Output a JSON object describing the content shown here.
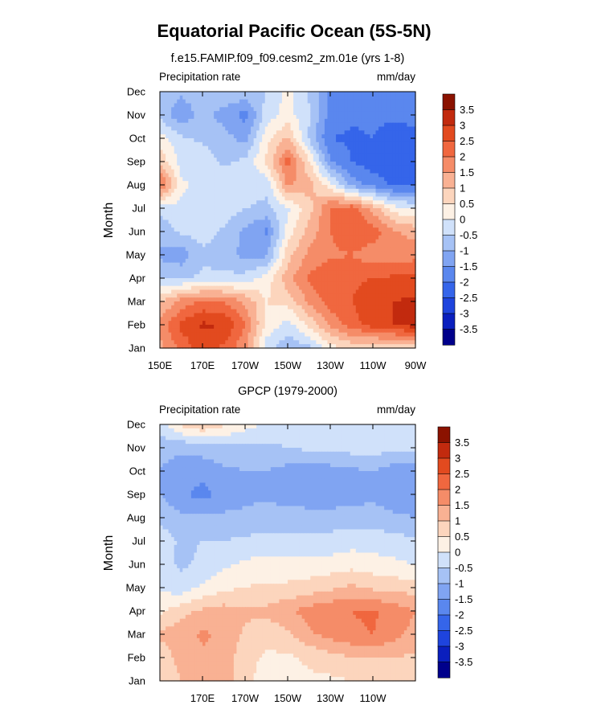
{
  "figure": {
    "title": "Equatorial Pacific Ocean (5S-5N)",
    "units_label": "mm/day",
    "field_label": "Precipitation rate"
  },
  "colors": {
    "levels": [
      "#00008b",
      "#0a1fbe",
      "#1e44dd",
      "#3565ea",
      "#5a87ee",
      "#80a4f2",
      "#a6c2f5",
      "#d0e1fa",
      "#fdf1e5",
      "#fcd5bd",
      "#f9b193",
      "#f58c68",
      "#f0673f",
      "#e24a1f",
      "#c22a0e",
      "#8b1200"
    ]
  },
  "chart_data": [
    {
      "type": "heatmap",
      "title": "f.e15.FAMIP.f09_f09.cesm2_zm.01e (yrs 1-8)",
      "left_label": "Precipitation rate",
      "right_label": "mm/day",
      "ylabel": "Month",
      "xlabel": "",
      "x_range": [
        150,
        270
      ],
      "x_ticks": [
        {
          "value": 150,
          "label": "150E"
        },
        {
          "value": 170,
          "label": "170E"
        },
        {
          "value": 190,
          "label": "170W"
        },
        {
          "value": 210,
          "label": "150W"
        },
        {
          "value": 230,
          "label": "130W"
        },
        {
          "value": 250,
          "label": "110W"
        },
        {
          "value": 270,
          "label": "90W"
        }
      ],
      "y_ticks": [
        "Jan",
        "Feb",
        "Mar",
        "Apr",
        "May",
        "Jun",
        "Jul",
        "Aug",
        "Sep",
        "Oct",
        "Nov",
        "Dec"
      ],
      "x": [
        150,
        160,
        170,
        180,
        190,
        200,
        210,
        220,
        230,
        240,
        250,
        260,
        270
      ],
      "values": [
        [
          1.3,
          2.2,
          2.7,
          2.4,
          1.6,
          -0.3,
          -0.9,
          -0.6,
          0.3,
          0.6,
          0.6,
          0.6,
          0.6
        ],
        [
          1.7,
          2.6,
          3.1,
          3.0,
          2.0,
          0.4,
          -0.2,
          0.6,
          1.6,
          2.3,
          2.7,
          3.0,
          3.3
        ],
        [
          0.9,
          1.7,
          2.1,
          2.0,
          1.4,
          0.5,
          0.7,
          1.6,
          2.3,
          2.5,
          2.8,
          3.0,
          3.1
        ],
        [
          -0.6,
          -0.6,
          -0.4,
          -0.4,
          -0.3,
          0.2,
          1.3,
          2.1,
          2.4,
          2.4,
          2.5,
          2.6,
          2.7
        ],
        [
          -1.1,
          -1.3,
          -0.6,
          -0.7,
          -1.2,
          -1.1,
          0.8,
          1.6,
          1.9,
          2.0,
          1.7,
          1.6,
          1.8
        ],
        [
          -0.8,
          -0.4,
          -0.3,
          -0.6,
          -1.1,
          -1.6,
          0.2,
          1.2,
          2.0,
          2.4,
          2.3,
          1.6,
          1.3
        ],
        [
          -0.4,
          -0.1,
          -0.1,
          -0.2,
          -0.5,
          -0.6,
          -0.1,
          0.8,
          2.0,
          2.3,
          1.3,
          0.2,
          -0.1
        ],
        [
          2.2,
          0.1,
          -0.2,
          -0.2,
          -0.2,
          -0.4,
          1.6,
          1.2,
          0.2,
          -1.2,
          -1.7,
          -2.1,
          -2.1
        ],
        [
          0.9,
          -0.2,
          -0.2,
          -0.6,
          -0.4,
          0.6,
          2.2,
          0.6,
          -1.5,
          -2.0,
          -2.3,
          -2.3,
          -2.2
        ],
        [
          0.2,
          -0.4,
          -0.6,
          -0.8,
          -1.2,
          0.3,
          1.1,
          -0.6,
          -2.0,
          -2.1,
          -2.0,
          -2.3,
          -2.2
        ],
        [
          -0.6,
          -1.4,
          -0.8,
          -1.2,
          -1.7,
          -0.3,
          0.2,
          -0.4,
          -1.7,
          -1.9,
          -1.9,
          -1.9,
          -1.8
        ],
        [
          -0.6,
          -0.9,
          -0.6,
          -0.6,
          -0.6,
          -0.5,
          0.2,
          -0.6,
          -1.6,
          -1.7,
          -1.6,
          -1.6,
          -1.6
        ]
      ],
      "colorbar_levels": [
        -3.5,
        -3,
        -2.5,
        -2,
        -1.5,
        -1,
        -0.5,
        0,
        0.5,
        1,
        1.5,
        2,
        2.5,
        3,
        3.5
      ]
    },
    {
      "type": "heatmap",
      "title": "GPCP (1979-2000)",
      "left_label": "Precipitation rate",
      "right_label": "mm/day",
      "ylabel": "Month",
      "xlabel": "",
      "x_range": [
        150,
        270
      ],
      "x_ticks": [
        {
          "value": 170,
          "label": "170E"
        },
        {
          "value": 190,
          "label": "170W"
        },
        {
          "value": 210,
          "label": "150W"
        },
        {
          "value": 230,
          "label": "130W"
        },
        {
          "value": 250,
          "label": "110W"
        }
      ],
      "y_ticks": [
        "Jan",
        "Feb",
        "Mar",
        "Apr",
        "May",
        "Jun",
        "Jul",
        "Aug",
        "Sep",
        "Oct",
        "Nov",
        "Dec"
      ],
      "x": [
        150,
        160,
        170,
        180,
        190,
        200,
        210,
        220,
        230,
        240,
        250,
        260,
        270
      ],
      "values": [
        [
          0.6,
          1.0,
          1.2,
          1.4,
          0.6,
          0.3,
          0.3,
          0.4,
          0.4,
          0.5,
          0.5,
          0.6,
          0.7
        ],
        [
          0.7,
          1.2,
          1.4,
          1.3,
          0.7,
          0.4,
          0.4,
          0.6,
          0.8,
          1.0,
          1.0,
          1.0,
          0.9
        ],
        [
          1.1,
          1.3,
          1.6,
          1.4,
          0.9,
          0.7,
          0.9,
          1.4,
          1.7,
          1.9,
          2.0,
          1.7,
          1.3
        ],
        [
          0.4,
          0.8,
          1.1,
          1.2,
          1.1,
          1.1,
          1.4,
          1.7,
          1.9,
          2.0,
          2.1,
          1.8,
          1.5
        ],
        [
          -0.1,
          -0.3,
          0.1,
          0.4,
          0.5,
          0.6,
          0.6,
          0.7,
          0.9,
          1.1,
          0.9,
          0.8,
          0.8
        ],
        [
          -0.3,
          -0.6,
          -0.4,
          -0.1,
          0.1,
          0.2,
          0.2,
          0.2,
          0.2,
          0.3,
          0.2,
          0.1,
          0.0
        ],
        [
          -0.2,
          -0.6,
          -0.5,
          -0.5,
          -0.4,
          -0.3,
          -0.3,
          -0.3,
          -0.3,
          -0.2,
          -0.2,
          -0.3,
          -0.4
        ],
        [
          -0.6,
          -0.9,
          -0.9,
          -0.9,
          -0.9,
          -0.8,
          -0.8,
          -0.8,
          -0.8,
          -0.8,
          -0.8,
          -0.9,
          -1.0
        ],
        [
          -1.0,
          -1.4,
          -1.7,
          -1.3,
          -1.1,
          -1.1,
          -1.2,
          -1.3,
          -1.3,
          -1.2,
          -1.1,
          -1.3,
          -1.4
        ],
        [
          -1.0,
          -1.2,
          -1.3,
          -1.1,
          -1.0,
          -1.0,
          -1.2,
          -1.3,
          -1.2,
          -1.1,
          -1.0,
          -1.3,
          -1.4
        ],
        [
          -0.9,
          -0.9,
          -0.8,
          -0.7,
          -0.6,
          -0.6,
          -0.5,
          -0.4,
          -0.4,
          -0.3,
          -0.3,
          -0.3,
          -0.4
        ],
        [
          -0.2,
          0.6,
          1.0,
          0.6,
          0.2,
          -0.1,
          -0.3,
          -0.3,
          -0.3,
          -0.2,
          -0.2,
          -0.2,
          -0.2
        ]
      ],
      "colorbar_levels": [
        -3.5,
        -3,
        -2.5,
        -2,
        -1.5,
        -1,
        -0.5,
        0,
        0.5,
        1,
        1.5,
        2,
        2.5,
        3,
        3.5
      ]
    }
  ]
}
